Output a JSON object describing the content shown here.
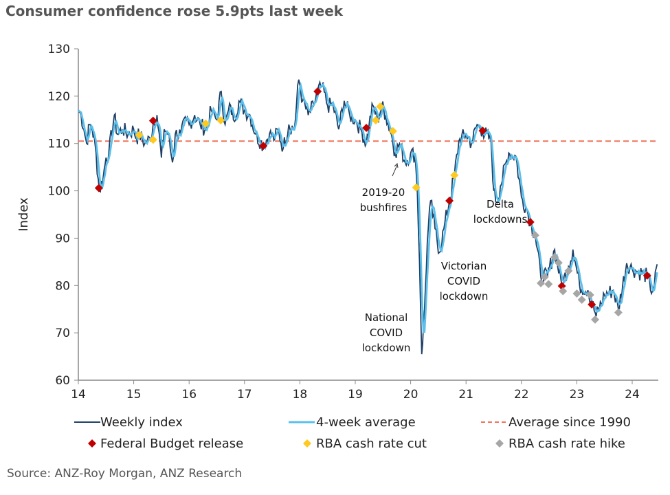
{
  "title": "Consumer confidence rose 5.9pts last week",
  "source": "Source: ANZ-Roy Morgan, ANZ Research",
  "chart_data": {
    "type": "line",
    "ylabel": "Index",
    "xlabel": "",
    "xlim": [
      2014,
      2024.5
    ],
    "ylim": [
      60,
      130
    ],
    "yticks": [
      60,
      70,
      80,
      90,
      100,
      110,
      120,
      130
    ],
    "xticks": [
      {
        "v": 2014,
        "label": "14"
      },
      {
        "v": 2015,
        "label": "15"
      },
      {
        "v": 2016,
        "label": "16"
      },
      {
        "v": 2017,
        "label": "17"
      },
      {
        "v": 2018,
        "label": "18"
      },
      {
        "v": 2019,
        "label": "19"
      },
      {
        "v": 2020,
        "label": "20"
      },
      {
        "v": 2021,
        "label": "21"
      },
      {
        "v": 2022,
        "label": "22"
      },
      {
        "v": 2023,
        "label": "23"
      },
      {
        "v": 2024,
        "label": "24"
      }
    ],
    "grid": false,
    "colors": {
      "weekly": "#1f3f66",
      "avg": "#5bc0eb",
      "average_line": "#f0735a",
      "budget": "#c00000",
      "cut": "#ffc920",
      "hike": "#a6a6a6"
    },
    "average_since_1990": 110.5,
    "weekly_index": [
      [
        2014.0,
        117
      ],
      [
        2014.05,
        116
      ],
      [
        2014.1,
        113
      ],
      [
        2014.15,
        110
      ],
      [
        2014.2,
        114
      ],
      [
        2014.25,
        113
      ],
      [
        2014.3,
        110
      ],
      [
        2014.38,
        100
      ],
      [
        2014.45,
        103
      ],
      [
        2014.5,
        107
      ],
      [
        2014.55,
        108
      ],
      [
        2014.65,
        116
      ],
      [
        2014.7,
        112
      ],
      [
        2014.8,
        113
      ],
      [
        2014.9,
        112
      ],
      [
        2015.0,
        113
      ],
      [
        2015.05,
        111
      ],
      [
        2015.1,
        112
      ],
      [
        2015.2,
        110
      ],
      [
        2015.3,
        111
      ],
      [
        2015.35,
        114
      ],
      [
        2015.42,
        116
      ],
      [
        2015.5,
        107
      ],
      [
        2015.55,
        113
      ],
      [
        2015.62,
        112
      ],
      [
        2015.7,
        106
      ],
      [
        2015.75,
        112
      ],
      [
        2015.85,
        112
      ],
      [
        2015.95,
        115
      ],
      [
        2016.0,
        114
      ],
      [
        2016.1,
        116
      ],
      [
        2016.2,
        114
      ],
      [
        2016.3,
        113
      ],
      [
        2016.4,
        117
      ],
      [
        2016.5,
        115
      ],
      [
        2016.58,
        121
      ],
      [
        2016.65,
        114
      ],
      [
        2016.75,
        118
      ],
      [
        2016.8,
        115
      ],
      [
        2016.9,
        119
      ],
      [
        2017.0,
        117
      ],
      [
        2017.1,
        116
      ],
      [
        2017.2,
        112
      ],
      [
        2017.34,
        109.5
      ],
      [
        2017.45,
        112
      ],
      [
        2017.55,
        111
      ],
      [
        2017.6,
        113
      ],
      [
        2017.7,
        109
      ],
      [
        2017.8,
        114
      ],
      [
        2017.9,
        113
      ],
      [
        2017.98,
        123.5
      ],
      [
        2018.05,
        119
      ],
      [
        2018.15,
        116
      ],
      [
        2018.25,
        118
      ],
      [
        2018.32,
        121
      ],
      [
        2018.4,
        122
      ],
      [
        2018.5,
        118
      ],
      [
        2018.6,
        118
      ],
      [
        2018.7,
        113
      ],
      [
        2018.8,
        119
      ],
      [
        2018.9,
        116
      ],
      [
        2019.0,
        115
      ],
      [
        2019.1,
        113
      ],
      [
        2019.2,
        110
      ],
      [
        2019.25,
        114
      ],
      [
        2019.32,
        118
      ],
      [
        2019.4,
        115
      ],
      [
        2019.48,
        118
      ],
      [
        2019.55,
        116
      ],
      [
        2019.65,
        112
      ],
      [
        2019.72,
        108
      ],
      [
        2019.8,
        110
      ],
      [
        2019.9,
        106
      ],
      [
        2020.0,
        108
      ],
      [
        2020.08,
        107.5
      ],
      [
        2020.12,
        100
      ],
      [
        2020.16,
        85
      ],
      [
        2020.2,
        65.5
      ],
      [
        2020.25,
        75
      ],
      [
        2020.3,
        89
      ],
      [
        2020.36,
        97.9
      ],
      [
        2020.44,
        92
      ],
      [
        2020.52,
        87
      ],
      [
        2020.6,
        92
      ],
      [
        2020.7,
        97.9
      ],
      [
        2020.79,
        103.3
      ],
      [
        2020.87,
        110.5
      ],
      [
        2021.0,
        112
      ],
      [
        2021.1,
        110
      ],
      [
        2021.2,
        114
      ],
      [
        2021.3,
        112.7
      ],
      [
        2021.45,
        110.5
      ],
      [
        2021.5,
        100
      ],
      [
        2021.55,
        97.5
      ],
      [
        2021.62,
        101
      ],
      [
        2021.77,
        108
      ],
      [
        2021.9,
        107.3
      ],
      [
        2022.0,
        98.7
      ],
      [
        2022.1,
        96
      ],
      [
        2022.16,
        93.4
      ],
      [
        2022.25,
        90.5
      ],
      [
        2022.35,
        81.8
      ],
      [
        2022.47,
        82
      ],
      [
        2022.6,
        87.6
      ],
      [
        2022.73,
        80
      ],
      [
        2022.85,
        84
      ],
      [
        2022.93,
        87.6
      ],
      [
        2023.05,
        80
      ],
      [
        2023.2,
        79
      ],
      [
        2023.35,
        73.5
      ],
      [
        2023.5,
        78
      ],
      [
        2023.66,
        79
      ],
      [
        2023.75,
        75
      ],
      [
        2023.9,
        84.7
      ],
      [
        2024.0,
        83.5
      ],
      [
        2024.1,
        83
      ],
      [
        2024.27,
        82
      ],
      [
        2024.33,
        79
      ],
      [
        2024.4,
        80
      ],
      [
        2024.45,
        84.5
      ]
    ],
    "legend": {
      "weekly": "Weekly index",
      "avg": "4-week average",
      "average_line": "Average since 1990",
      "budget": "Federal Budget release",
      "cut": "RBA cash rate cut",
      "hike": "RBA cash rate hike"
    },
    "legend_placement": "bottom",
    "budget_markers": [
      [
        2014.37,
        100.6
      ],
      [
        2015.35,
        114.8
      ],
      [
        2017.34,
        109.5
      ],
      [
        2018.32,
        121
      ],
      [
        2019.2,
        113.3
      ],
      [
        2020.7,
        97.9
      ],
      [
        2021.3,
        112.7
      ],
      [
        2022.16,
        93.4
      ],
      [
        2022.73,
        79.9
      ],
      [
        2023.27,
        76
      ],
      [
        2024.27,
        82.1
      ]
    ],
    "cut_markers": [
      [
        2015.1,
        111.8
      ],
      [
        2015.35,
        110.8
      ],
      [
        2016.3,
        114.2
      ],
      [
        2016.57,
        114.9
      ],
      [
        2019.37,
        114.9
      ],
      [
        2019.45,
        117.8
      ],
      [
        2019.68,
        112.6
      ],
      [
        2020.1,
        100.7
      ],
      [
        2020.79,
        103.3
      ]
    ],
    "hike_markers": [
      [
        2022.25,
        90.6
      ],
      [
        2022.35,
        80.5
      ],
      [
        2022.42,
        81.8
      ],
      [
        2022.49,
        80.3
      ],
      [
        2022.6,
        86
      ],
      [
        2022.67,
        84.8
      ],
      [
        2022.75,
        78.8
      ],
      [
        2022.85,
        83.1
      ],
      [
        2023.0,
        78.3
      ],
      [
        2023.09,
        77
      ],
      [
        2023.24,
        78
      ],
      [
        2023.33,
        72.8
      ],
      [
        2023.75,
        74.3
      ]
    ],
    "annotations": [
      {
        "lines": [
          "2019-20",
          "bushfires"
        ]
      },
      {
        "lines": [
          "National",
          "COVID",
          "lockdown"
        ]
      },
      {
        "lines": [
          "Victorian",
          "COVID",
          "lockdown"
        ]
      },
      {
        "lines": [
          "Delta",
          "lockdowns"
        ]
      }
    ]
  }
}
